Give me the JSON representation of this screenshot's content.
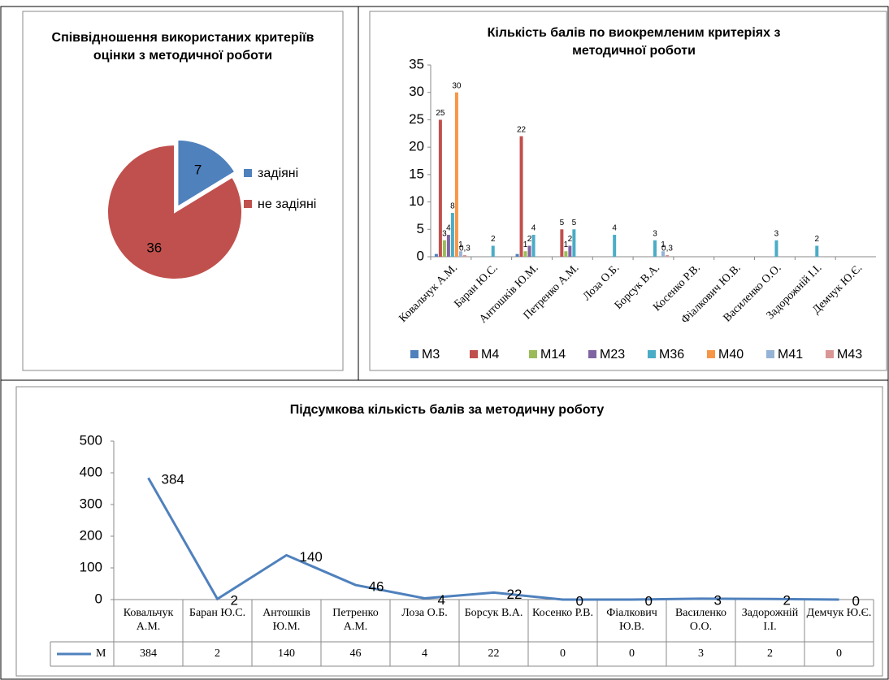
{
  "chart_data": [
    {
      "type": "pie",
      "title": "Співвідношення використаних критеріїв оцінки з методичної роботи",
      "categories": [
        "задіяні",
        "не задіяні"
      ],
      "values": [
        7,
        36
      ],
      "colors": [
        "#4f81bd",
        "#c0504d"
      ]
    },
    {
      "type": "bar",
      "title": "Кількість балів по виокремленим критеріях з методичної роботи",
      "categories": [
        "Ковальчук А.М.",
        "Баран Ю.С.",
        "Антошків Ю.М.",
        "Петренко А.М.",
        "Лоза О.Б.",
        "Борсук В.А.",
        "Косенко Р.В.",
        "Фіалкович Ю.В.",
        "Василенко О.О.",
        "Задорожній І.І.",
        "Демчук Ю.Є."
      ],
      "series": [
        {
          "name": "M3",
          "color": "#4f81bd",
          "values": [
            0.5,
            null,
            0.5,
            null,
            null,
            null,
            null,
            null,
            null,
            null,
            null
          ],
          "value_labels": [
            null,
            null,
            null,
            null,
            null,
            null,
            null,
            null,
            null,
            null,
            null
          ]
        },
        {
          "name": "M4",
          "color": "#c0504d",
          "values": [
            25,
            null,
            22,
            5,
            null,
            null,
            null,
            null,
            null,
            null,
            null
          ],
          "value_labels": [
            "25",
            null,
            "22",
            "5",
            null,
            null,
            null,
            null,
            null,
            null,
            null
          ]
        },
        {
          "name": "M14",
          "color": "#9bbb59",
          "values": [
            3,
            null,
            1,
            1,
            null,
            null,
            null,
            null,
            null,
            null,
            null
          ],
          "value_labels": [
            "3",
            null,
            "1",
            "1",
            null,
            null,
            null,
            null,
            null,
            null,
            null
          ]
        },
        {
          "name": "M23",
          "color": "#8064a2",
          "values": [
            4,
            null,
            2,
            2,
            null,
            null,
            null,
            null,
            null,
            null,
            null
          ],
          "value_labels": [
            "4",
            null,
            "2",
            "2",
            null,
            null,
            null,
            null,
            null,
            null,
            null
          ]
        },
        {
          "name": "M36",
          "color": "#4bacc6",
          "values": [
            8,
            2,
            4,
            5,
            4,
            3,
            null,
            null,
            3,
            2,
            null
          ],
          "value_labels": [
            "8",
            "2",
            "4",
            "5",
            "4",
            "3",
            null,
            null,
            "3",
            "2",
            null
          ]
        },
        {
          "name": "M40",
          "color": "#f79646",
          "values": [
            30,
            null,
            null,
            null,
            null,
            null,
            null,
            null,
            null,
            null,
            null
          ],
          "value_labels": [
            "30",
            null,
            null,
            null,
            null,
            null,
            null,
            null,
            null,
            null,
            null
          ]
        },
        {
          "name": "M41",
          "color": "#95b3d7",
          "values": [
            1,
            null,
            null,
            null,
            null,
            1,
            null,
            null,
            null,
            null,
            null
          ],
          "value_labels": [
            "1",
            null,
            null,
            null,
            null,
            "1",
            null,
            null,
            null,
            null,
            null
          ]
        },
        {
          "name": "M43",
          "color": "#d99694",
          "values": [
            0.3,
            null,
            null,
            null,
            null,
            0.3,
            null,
            null,
            null,
            null,
            null
          ],
          "value_labels": [
            "0,3",
            null,
            null,
            null,
            null,
            "0,3",
            null,
            null,
            null,
            null,
            null
          ]
        }
      ],
      "ylim": [
        0,
        35
      ],
      "yticks": [
        0,
        5,
        10,
        15,
        20,
        25,
        30,
        35
      ]
    },
    {
      "type": "line",
      "title": "Підсумкова кількість балів за методичну роботу",
      "categories": [
        "Ковальчук А.М.",
        "Баран Ю.С.",
        "Антошків Ю.М.",
        "Петренко А.М.",
        "Лоза О.Б.",
        "Борсук В.А.",
        "Косенко Р.В.",
        "Фіалкович Ю.В.",
        "Василенко О.О.",
        "Задорожній І.І.",
        "Демчук Ю.Є."
      ],
      "series": [
        {
          "name": "М",
          "color": "#4f81bd",
          "values": [
            384,
            2,
            140,
            46,
            4,
            22,
            0,
            0,
            3,
            2,
            0
          ]
        }
      ],
      "ylim": [
        0,
        500
      ],
      "yticks": [
        0,
        100,
        200,
        300,
        400,
        500
      ]
    }
  ]
}
